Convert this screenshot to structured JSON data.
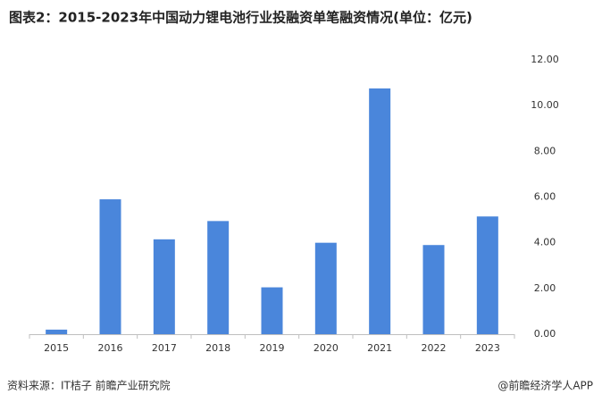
{
  "chart_data": {
    "type": "bar",
    "title": "图表2：2015-2023年中国动力锂电池行业投融资单笔融资情况(单位：亿元)",
    "categories": [
      "2015",
      "2016",
      "2017",
      "2018",
      "2019",
      "2020",
      "2021",
      "2022",
      "2023"
    ],
    "values": [
      0.2,
      5.9,
      4.15,
      4.95,
      2.05,
      4.0,
      10.75,
      3.9,
      5.15
    ],
    "color": "#4a86db",
    "ylim": [
      0,
      12
    ],
    "yticks": [
      {
        "value": 0,
        "label": "0.00"
      },
      {
        "value": 2,
        "label": "2.00"
      },
      {
        "value": 4,
        "label": "4.00"
      },
      {
        "value": 6,
        "label": "6.00"
      },
      {
        "value": 8,
        "label": "8.00"
      },
      {
        "value": 10,
        "label": "10.00"
      },
      {
        "value": 12,
        "label": "12.00"
      }
    ],
    "yaxis_side": "right",
    "grid": false,
    "source": "资料来源：IT桔子 前瞻产业研究院",
    "credit": "@前瞻经济学人APP"
  }
}
